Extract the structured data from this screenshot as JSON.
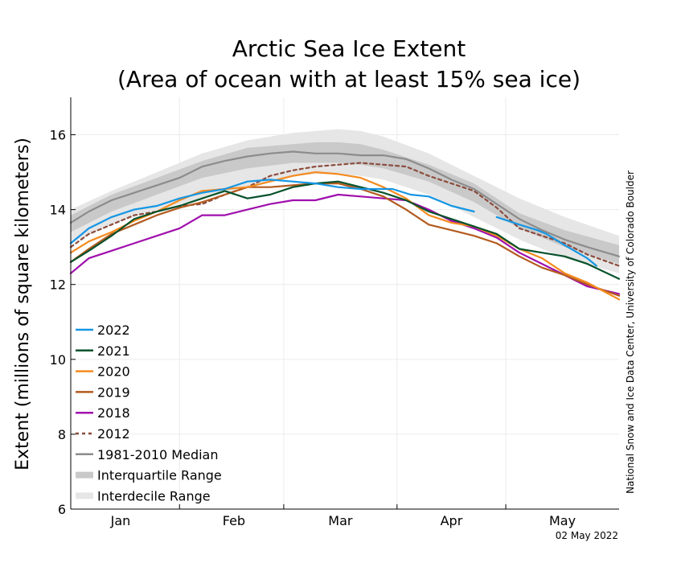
{
  "chart_data": {
    "type": "line",
    "title": "Arctic Sea Ice Extent",
    "subtitle": "(Area of ocean with at least 15% sea ice)",
    "xlabel": "",
    "ylabel": "Extent (millions of square kilometers)",
    "xlim": [
      1,
      122
    ],
    "ylim": [
      6,
      17
    ],
    "yticks": [
      6,
      8,
      10,
      12,
      14,
      16
    ],
    "ytick_labels": [
      "6",
      "8",
      "10",
      "12",
      "14",
      "16"
    ],
    "month_labels": [
      {
        "label": "Jan",
        "day": 12
      },
      {
        "label": "Feb",
        "day": 37
      },
      {
        "label": "Mar",
        "day": 60.5
      },
      {
        "label": "Apr",
        "day": 85
      },
      {
        "label": "May",
        "day": 109.5
      }
    ],
    "month_boundaries": [
      25,
      48,
      73,
      97
    ],
    "grid": true,
    "credit": "National Snow and Ice Data Center, University of Colorado Boulder",
    "date_stamp": "02 May 2022",
    "legend_position": "bottom-left",
    "bands": [
      {
        "name": "Interdecile Range",
        "color": "#e6e6e6",
        "x": [
          1,
          10,
          20,
          30,
          40,
          50,
          55,
          60,
          65,
          70,
          80,
          90,
          100,
          110,
          122
        ],
        "lower": [
          13.1,
          13.6,
          14.0,
          14.3,
          14.6,
          14.9,
          14.95,
          14.95,
          14.9,
          14.8,
          14.4,
          13.8,
          13.2,
          12.7,
          12.3
        ],
        "upper": [
          14.0,
          14.5,
          15.0,
          15.5,
          15.85,
          16.05,
          16.1,
          16.15,
          16.1,
          15.95,
          15.5,
          14.9,
          14.3,
          13.8,
          13.3
        ]
      },
      {
        "name": "Interquartile Range",
        "color": "#c9c9c9",
        "x": [
          1,
          10,
          20,
          30,
          40,
          50,
          55,
          60,
          65,
          70,
          80,
          90,
          100,
          110,
          122
        ],
        "lower": [
          13.4,
          13.95,
          14.4,
          14.85,
          15.1,
          15.25,
          15.25,
          15.25,
          15.2,
          15.1,
          14.75,
          14.2,
          13.5,
          13.0,
          12.55
        ],
        "upper": [
          13.85,
          14.4,
          14.85,
          15.3,
          15.65,
          15.75,
          15.8,
          15.8,
          15.75,
          15.6,
          15.2,
          14.7,
          13.9,
          13.45,
          13.05
        ]
      }
    ],
    "series": [
      {
        "name": "1981-2010 Median",
        "color": "#8c8c8c",
        "dash": "none",
        "x": [
          1,
          5,
          10,
          15,
          20,
          25,
          30,
          35,
          40,
          45,
          50,
          55,
          60,
          65,
          70,
          75,
          80,
          85,
          90,
          95,
          100,
          105,
          110,
          115,
          122
        ],
        "y": [
          13.65,
          13.95,
          14.25,
          14.45,
          14.65,
          14.85,
          15.15,
          15.3,
          15.42,
          15.5,
          15.55,
          15.5,
          15.5,
          15.45,
          15.45,
          15.35,
          15.1,
          14.8,
          14.55,
          14.15,
          13.75,
          13.45,
          13.2,
          13.0,
          12.75
        ]
      },
      {
        "name": "2012",
        "color": "#8b4c3c",
        "dash": "4,4",
        "x": [
          1,
          5,
          10,
          15,
          20,
          25,
          30,
          35,
          40,
          45,
          50,
          55,
          60,
          65,
          70,
          75,
          80,
          85,
          90,
          95,
          100,
          105,
          110,
          115,
          122
        ],
        "y": [
          13.0,
          13.35,
          13.6,
          13.85,
          13.95,
          14.1,
          14.15,
          14.4,
          14.6,
          14.9,
          15.05,
          15.15,
          15.2,
          15.25,
          15.2,
          15.15,
          14.9,
          14.7,
          14.5,
          14.05,
          13.5,
          13.3,
          13.1,
          12.8,
          12.5
        ]
      },
      {
        "name": "2018",
        "color": "#a00fad",
        "dash": "none",
        "x": [
          1,
          5,
          10,
          15,
          20,
          25,
          30,
          35,
          40,
          45,
          50,
          55,
          60,
          65,
          70,
          75,
          80,
          85,
          90,
          95,
          100,
          105,
          110,
          115,
          122
        ],
        "y": [
          12.3,
          12.7,
          12.9,
          13.1,
          13.3,
          13.5,
          13.85,
          13.85,
          14.0,
          14.15,
          14.25,
          14.25,
          14.4,
          14.35,
          14.3,
          14.25,
          14.0,
          13.7,
          13.5,
          13.25,
          12.85,
          12.55,
          12.25,
          11.95,
          11.75
        ]
      },
      {
        "name": "2019",
        "color": "#b35a1f",
        "dash": "none",
        "x": [
          1,
          5,
          10,
          15,
          20,
          25,
          30,
          35,
          40,
          45,
          50,
          55,
          60,
          65,
          70,
          75,
          80,
          85,
          90,
          95,
          100,
          105,
          110,
          115,
          122
        ],
        "y": [
          12.6,
          12.95,
          13.35,
          13.6,
          13.85,
          14.05,
          14.2,
          14.4,
          14.6,
          14.6,
          14.65,
          14.7,
          14.7,
          14.55,
          14.35,
          14.0,
          13.6,
          13.45,
          13.3,
          13.1,
          12.75,
          12.45,
          12.25,
          12.0,
          11.7
        ]
      },
      {
        "name": "2020",
        "color": "#f58b1e",
        "dash": "none",
        "x": [
          1,
          5,
          10,
          15,
          20,
          25,
          30,
          35,
          40,
          45,
          50,
          55,
          60,
          65,
          70,
          75,
          80,
          85,
          90,
          95,
          100,
          105,
          110,
          115,
          122
        ],
        "y": [
          12.85,
          13.15,
          13.4,
          13.7,
          13.95,
          14.25,
          14.5,
          14.55,
          14.6,
          14.75,
          14.9,
          15.0,
          14.95,
          14.85,
          14.6,
          14.3,
          13.85,
          13.65,
          13.55,
          13.3,
          12.95,
          12.7,
          12.3,
          12.05,
          11.6
        ]
      },
      {
        "name": "2021",
        "color": "#06522b",
        "dash": "none",
        "x": [
          1,
          5,
          10,
          15,
          20,
          25,
          30,
          35,
          40,
          45,
          50,
          55,
          60,
          65,
          70,
          75,
          80,
          85,
          90,
          95,
          100,
          105,
          110,
          115,
          122
        ],
        "y": [
          12.6,
          12.9,
          13.3,
          13.75,
          13.95,
          14.1,
          14.3,
          14.5,
          14.3,
          14.4,
          14.6,
          14.7,
          14.75,
          14.6,
          14.45,
          14.25,
          13.95,
          13.75,
          13.55,
          13.35,
          12.95,
          12.85,
          12.75,
          12.55,
          12.15
        ]
      },
      {
        "name": "2022",
        "color": "#1596e3",
        "dash": "none",
        "x": [
          1,
          5,
          10,
          15,
          20,
          25,
          30,
          35,
          40,
          45,
          50,
          55,
          60,
          65,
          70,
          72,
          76,
          80,
          85,
          90,
          92,
          95,
          100,
          104,
          106,
          110,
          115,
          117
        ],
        "y": [
          13.1,
          13.5,
          13.8,
          14.0,
          14.1,
          14.3,
          14.45,
          14.55,
          14.75,
          14.8,
          14.75,
          14.7,
          14.6,
          14.55,
          14.55,
          14.55,
          14.4,
          14.35,
          14.1,
          13.95,
          null,
          13.8,
          13.6,
          13.45,
          13.35,
          13.05,
          12.7,
          12.5
        ]
      }
    ],
    "legend": [
      {
        "label": "2022",
        "color": "#1596e3",
        "dash": "none",
        "kind": "line"
      },
      {
        "label": "2021",
        "color": "#06522b",
        "dash": "none",
        "kind": "line"
      },
      {
        "label": "2020",
        "color": "#f58b1e",
        "dash": "none",
        "kind": "line"
      },
      {
        "label": "2019",
        "color": "#b35a1f",
        "dash": "none",
        "kind": "line"
      },
      {
        "label": "2018",
        "color": "#a00fad",
        "dash": "none",
        "kind": "line"
      },
      {
        "label": "2012",
        "color": "#8b4c3c",
        "dash": "4,4",
        "kind": "line"
      },
      {
        "label": "1981-2010 Median",
        "color": "#8c8c8c",
        "dash": "none",
        "kind": "line"
      },
      {
        "label": "Interquartile Range",
        "color": "#c9c9c9",
        "dash": "none",
        "kind": "band"
      },
      {
        "label": "Interdecile Range",
        "color": "#e6e6e6",
        "dash": "none",
        "kind": "band"
      }
    ]
  }
}
